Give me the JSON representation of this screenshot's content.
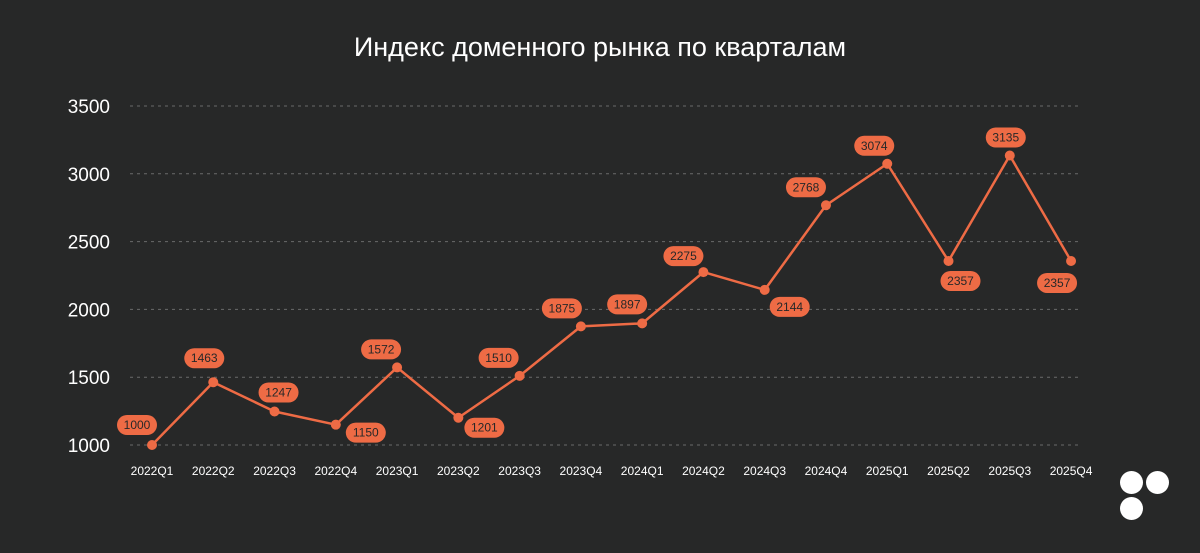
{
  "chart_data": {
    "type": "line",
    "title": "Индекс доменного рынка по кварталам",
    "xlabel": "",
    "ylabel": "",
    "categories": [
      "2022Q1",
      "2022Q2",
      "2022Q3",
      "2022Q4",
      "2023Q1",
      "2023Q2",
      "2023Q3",
      "2023Q4",
      "2024Q1",
      "2024Q2",
      "2024Q3",
      "2024Q4",
      "2025Q1",
      "2025Q2",
      "2025Q3",
      "2025Q4"
    ],
    "values": [
      1000,
      1463,
      1247,
      1150,
      1572,
      1201,
      1510,
      1875,
      1897,
      2275,
      2144,
      2768,
      3074,
      2357,
      3135,
      2357
    ],
    "yticks": [
      1000,
      1500,
      2000,
      2500,
      3000,
      3500
    ],
    "ylim": [
      1000,
      3500
    ],
    "grid": true,
    "legend": "none",
    "colors": {
      "line": "#ee6b45",
      "background": "#272828",
      "grid": "#6a6a6a"
    }
  }
}
